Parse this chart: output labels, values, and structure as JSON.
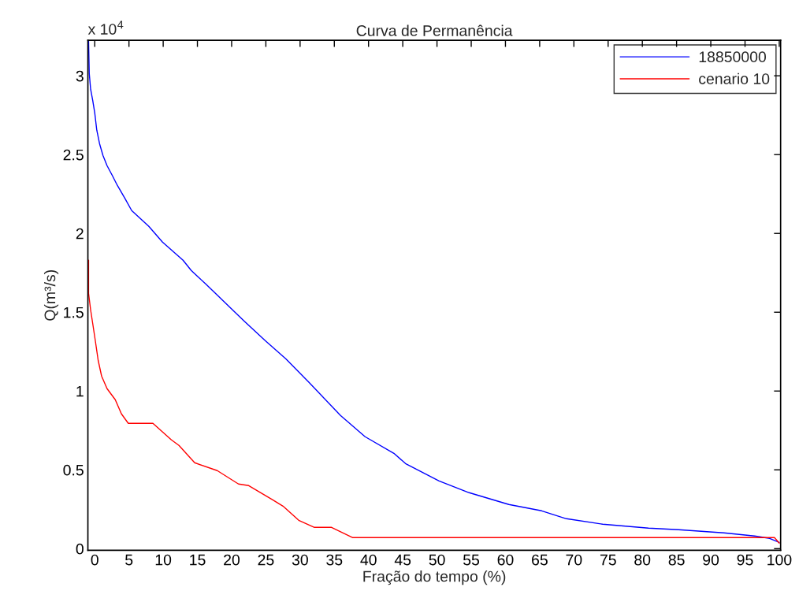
{
  "chart_data": {
    "type": "line",
    "title": "Curva de Permanência",
    "xlabel": "Fração do tempo (%)",
    "ylabel": "Q(m³/s)",
    "annotations": [
      "x 10$^{4}$"
    ],
    "xlim": [
      -1,
      100.2
    ],
    "xticks": [
      0,
      5,
      10,
      15,
      20,
      25,
      30,
      35,
      40,
      45,
      50,
      55,
      60,
      65,
      70,
      75,
      80,
      85,
      90,
      95,
      100
    ],
    "ylim": [
      -0.01,
      3.225
    ],
    "yticks": [
      0,
      0.5,
      1,
      1.5,
      2,
      2.5,
      3
    ],
    "grid": false,
    "legend": "top right",
    "marker": "none",
    "line_style": "solid",
    "series": [
      {
        "name": "18850000",
        "color": "#0000ff",
        "x": [
          -0.9,
          -0.8,
          -0.6,
          -0.3,
          0,
          0.3,
          0.7,
          1.2,
          1.8,
          2.6,
          3.3,
          4.5,
          5.4,
          7.9,
          9.9,
          12.9,
          14.1,
          15.2,
          16.2,
          21.8,
          24.9,
          27.9,
          31.3,
          35.9,
          39.5,
          43.7,
          45.4,
          50.3,
          54.7,
          60.5,
          65.3,
          68.9,
          74.2,
          80.9,
          85.3,
          91.9,
          96.4,
          98.6,
          100
        ],
        "values": [
          3.22,
          3.015,
          2.915,
          2.845,
          2.765,
          2.655,
          2.57,
          2.495,
          2.43,
          2.365,
          2.305,
          2.215,
          2.145,
          2.045,
          1.945,
          1.83,
          1.765,
          1.72,
          1.68,
          1.445,
          1.32,
          1.205,
          1.055,
          0.845,
          0.71,
          0.605,
          0.54,
          0.43,
          0.355,
          0.28,
          0.24,
          0.19,
          0.155,
          0.13,
          0.12,
          0.1,
          0.08,
          0.065,
          0.04
        ]
      },
      {
        "name": "cenario 10",
        "color": "#ff0000",
        "x": [
          -0.9,
          -0.9,
          -0.6,
          -0.3,
          0.1,
          0.5,
          1,
          1.8,
          3,
          3.9,
          4.9,
          8.5,
          11.2,
          12.3,
          14.6,
          17.9,
          21,
          22.5,
          26,
          27.5,
          29.8,
          32.1,
          34.6,
          37.7,
          99.3,
          100
        ],
        "values": [
          1.83,
          1.62,
          1.515,
          1.43,
          1.315,
          1.195,
          1.095,
          1.015,
          0.945,
          0.855,
          0.795,
          0.795,
          0.69,
          0.655,
          0.545,
          0.495,
          0.41,
          0.4,
          0.31,
          0.27,
          0.18,
          0.135,
          0.135,
          0.07,
          0.07,
          0.035
        ]
      }
    ]
  }
}
